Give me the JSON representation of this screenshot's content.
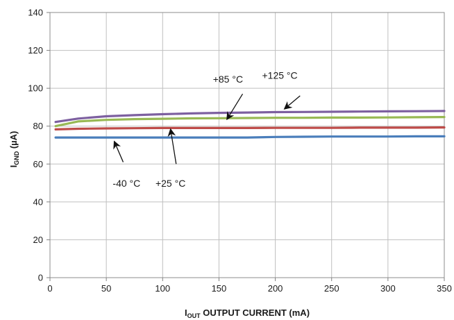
{
  "chart_data": {
    "type": "line",
    "title": "",
    "xlabel": {
      "main": "I",
      "sub": "OUT",
      "rest": " OUTPUT CURRENT (mA)"
    },
    "ylabel": {
      "main": "I",
      "sub": "GND",
      "rest": " (µA)"
    },
    "xlim": [
      0,
      350
    ],
    "ylim": [
      0,
      140
    ],
    "x_ticks": [
      "0",
      "50",
      "100",
      "150",
      "200",
      "250",
      "300",
      "350"
    ],
    "y_ticks": [
      "0",
      "20",
      "40",
      "60",
      "80",
      "100",
      "120",
      "140"
    ],
    "grid": true,
    "legend": "none",
    "series": [
      {
        "label": "-40 °C",
        "color": "#4a7ebb",
        "x": [
          5,
          25,
          50,
          75,
          100,
          125,
          150,
          175,
          200,
          225,
          250,
          275,
          300,
          325,
          350
        ],
        "y": [
          74,
          74,
          74,
          74,
          74,
          74,
          74,
          74,
          74.3,
          74.4,
          74.5,
          74.5,
          74.5,
          74.6,
          74.6
        ]
      },
      {
        "label": "+25 °C",
        "color": "#be4b48",
        "x": [
          5,
          25,
          50,
          75,
          100,
          125,
          150,
          175,
          200,
          225,
          250,
          275,
          300,
          325,
          350
        ],
        "y": [
          78.3,
          78.6,
          78.8,
          78.9,
          79,
          79,
          79,
          79,
          79.1,
          79.1,
          79.1,
          79.2,
          79.2,
          79.2,
          79.3
        ]
      },
      {
        "label": "+85 °C",
        "color": "#98b954",
        "x": [
          5,
          25,
          50,
          75,
          100,
          125,
          150,
          175,
          200,
          225,
          250,
          275,
          300,
          325,
          350
        ],
        "y": [
          80,
          82.5,
          83.3,
          83.7,
          83.9,
          84.1,
          84.2,
          84.3,
          84.4,
          84.4,
          84.5,
          84.5,
          84.6,
          84.7,
          84.8
        ]
      },
      {
        "label": "+125 °C",
        "color": "#7d60a0",
        "x": [
          5,
          25,
          50,
          75,
          100,
          125,
          150,
          175,
          200,
          225,
          250,
          275,
          300,
          325,
          350
        ],
        "y": [
          82.2,
          84,
          85.2,
          85.8,
          86.3,
          86.7,
          87,
          87.2,
          87.4,
          87.5,
          87.6,
          87.7,
          87.8,
          87.9,
          88
        ]
      }
    ],
    "annotations": [
      {
        "text": "-40 °C",
        "series": "-40 °C",
        "text_at": [
          68,
          48
        ],
        "arrow_from": [
          65,
          61
        ],
        "arrow_to": [
          57,
          72
        ]
      },
      {
        "text": "+25 °C",
        "series": "+25 °C",
        "text_at": [
          107,
          48
        ],
        "arrow_from": [
          112,
          60
        ],
        "arrow_to": [
          107,
          78.5
        ]
      },
      {
        "text": "+85 °C",
        "series": "+85 °C",
        "text_at": [
          158,
          103
        ],
        "arrow_from": [
          171,
          97
        ],
        "arrow_to": [
          157,
          83.5
        ]
      },
      {
        "text": "+125 °C",
        "series": "+125 °C",
        "text_at": [
          204,
          105
        ],
        "arrow_from": [
          222,
          96
        ],
        "arrow_to": [
          208,
          89
        ]
      }
    ]
  }
}
